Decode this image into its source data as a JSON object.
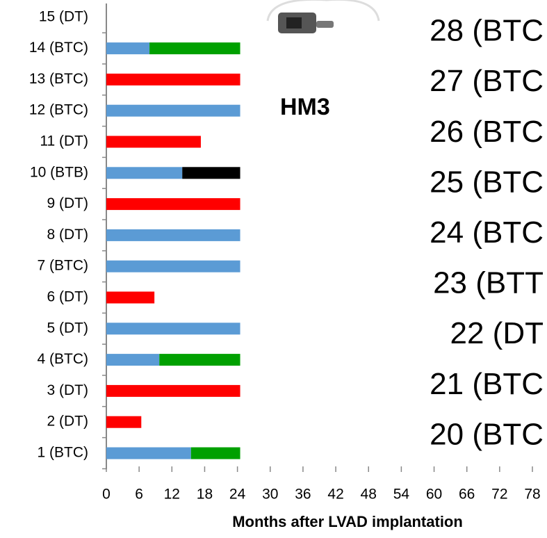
{
  "chart_data": {
    "type": "bar",
    "orientation": "horizontal",
    "stacked": true,
    "x_label": "Months after LVAD implantation",
    "categories": [
      "1 (BTC)",
      "2 (DT)",
      "3 (DT)",
      "4 (BTC)",
      "5 (DT)",
      "6 (DT)",
      "7 (BTC)",
      "8 (DT)",
      "9 (DT)",
      "10 (BTB)",
      "11 (DT)",
      "12 (BTC)",
      "13 (BTC)",
      "14 (BTC)",
      "15 (DT)"
    ],
    "series": [
      {
        "color": "#5b9bd5",
        "values": [
          15.5,
          null,
          null,
          9.7,
          24.5,
          null,
          24.5,
          24.5,
          null,
          13.9,
          null,
          24.5,
          null,
          7.9,
          null
        ]
      },
      {
        "color": "#ff0000",
        "values": [
          null,
          6.4,
          24.5,
          null,
          null,
          8.8,
          null,
          null,
          24.5,
          null,
          17.3,
          null,
          24.5,
          null,
          null
        ]
      },
      {
        "color": "#00a000",
        "values": [
          9.0,
          null,
          null,
          14.8,
          null,
          null,
          null,
          null,
          null,
          null,
          null,
          null,
          null,
          16.6,
          null
        ]
      },
      {
        "color": "#000000",
        "values": [
          null,
          null,
          null,
          null,
          null,
          null,
          null,
          null,
          null,
          10.6,
          null,
          null,
          null,
          null,
          null
        ]
      }
    ],
    "xlim": [
      0,
      78
    ],
    "xticks": [
      0,
      6,
      12,
      18,
      24,
      30,
      36,
      42,
      48,
      54,
      60,
      66,
      72,
      78
    ],
    "annotations": [
      "HM3",
      "28 (BTC",
      "27 (BTC",
      "26 (BTC",
      "25 (BTC",
      "24 (BTC",
      "23 (BTT",
      "22 (DT",
      "21 (BTC",
      "20 (BTC"
    ]
  }
}
